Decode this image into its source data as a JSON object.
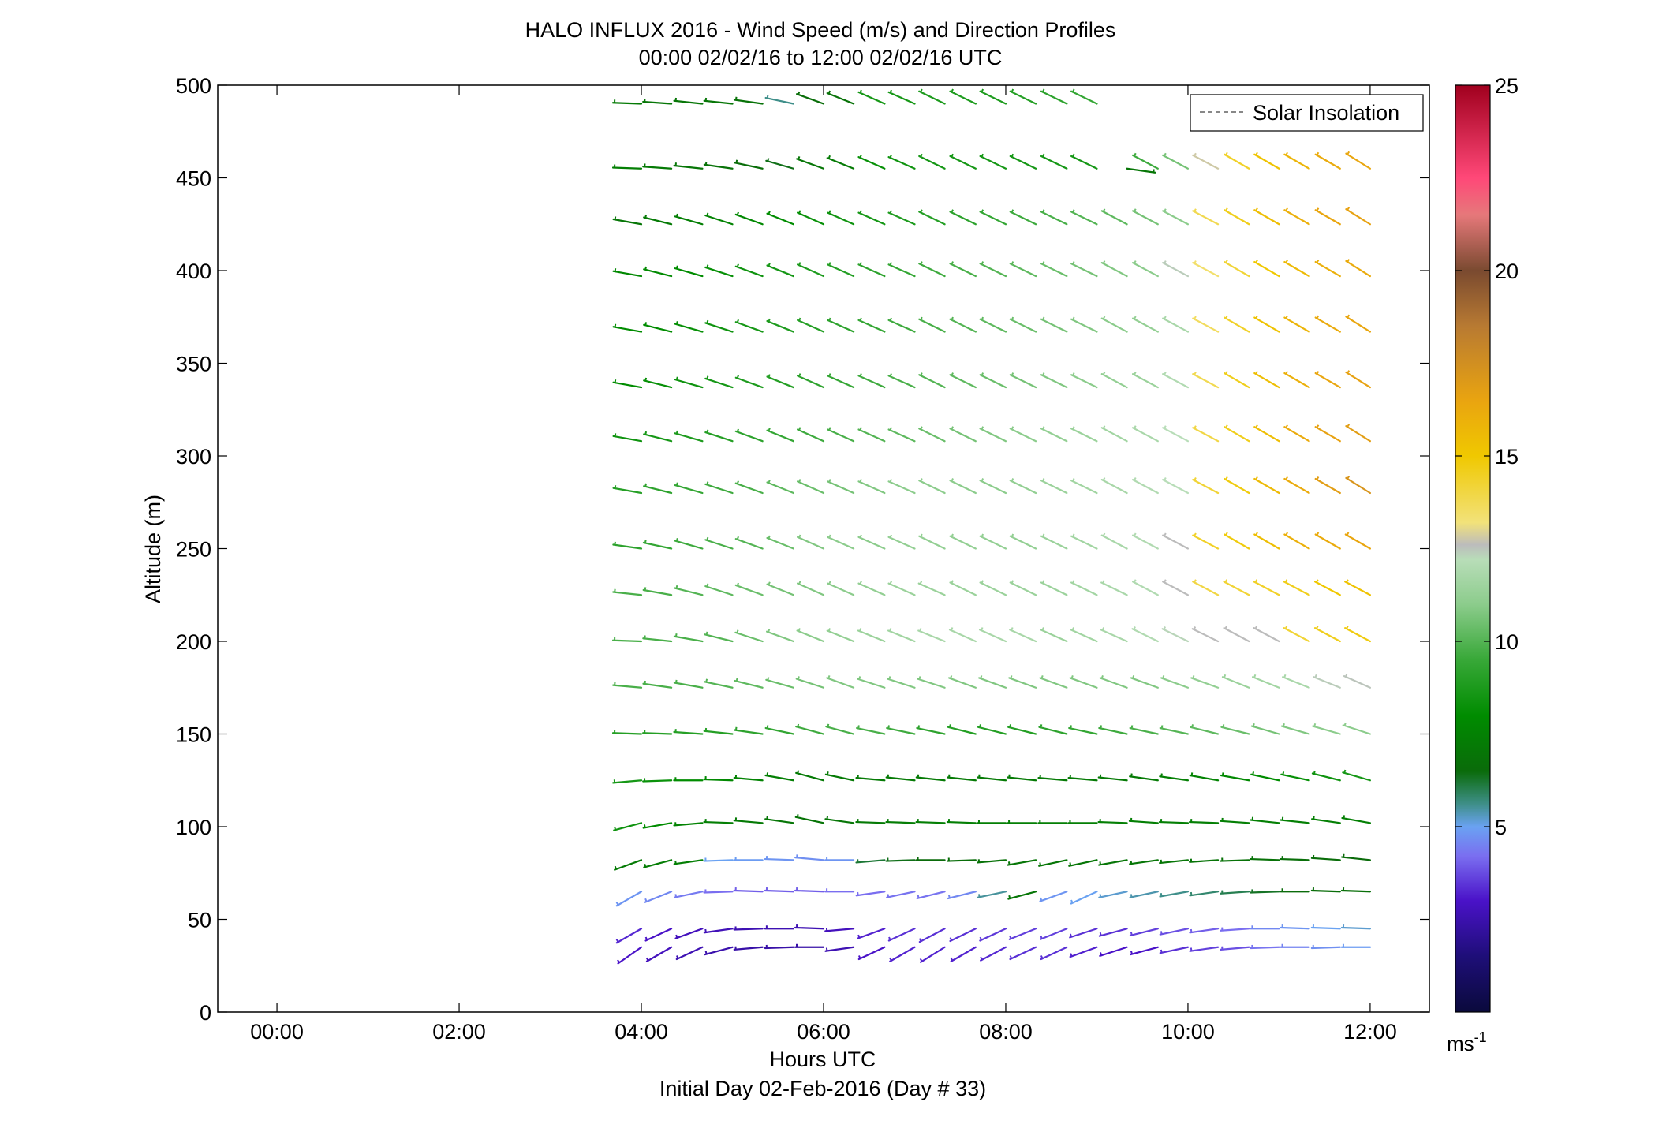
{
  "chart_data": {
    "type": "wind-barb",
    "title": "HALO INFLUX 2016 - Wind Speed (m/s) and Direction Profiles",
    "subtitle": "00:00 02/02/16 to 12:00 02/02/16  UTC",
    "xlabel": "Hours UTC",
    "xlabel2": "Initial Day 02-Feb-2016 (Day # 33)",
    "ylabel": "Altitude (m)",
    "xlim": [
      -0.65,
      12.65
    ],
    "ylim": [
      0,
      500
    ],
    "x_ticks": [
      {
        "value": 0,
        "label": "00:00"
      },
      {
        "value": 2,
        "label": "02:00"
      },
      {
        "value": 4,
        "label": "04:00"
      },
      {
        "value": 6,
        "label": "06:00"
      },
      {
        "value": 8,
        "label": "08:00"
      },
      {
        "value": 10,
        "label": "10:00"
      },
      {
        "value": 12,
        "label": "12:00"
      }
    ],
    "y_ticks": [
      {
        "value": 0,
        "label": "0"
      },
      {
        "value": 50,
        "label": "50"
      },
      {
        "value": 100,
        "label": "100"
      },
      {
        "value": 150,
        "label": "150"
      },
      {
        "value": 200,
        "label": "200"
      },
      {
        "value": 250,
        "label": "250"
      },
      {
        "value": 300,
        "label": "300"
      },
      {
        "value": 350,
        "label": "350"
      },
      {
        "value": 400,
        "label": "400"
      },
      {
        "value": 450,
        "label": "450"
      },
      {
        "value": 500,
        "label": "500"
      }
    ],
    "legend": {
      "label": "Solar Insolation",
      "position": "top-right",
      "line_color": "#888888",
      "line_style": "dashed"
    },
    "colorbar": {
      "min": 0,
      "max": 25,
      "ticks": [
        {
          "value": 5,
          "label": "5"
        },
        {
          "value": 10,
          "label": "10"
        },
        {
          "value": 15,
          "label": "15"
        },
        {
          "value": 20,
          "label": "20"
        },
        {
          "value": 25,
          "label": "25"
        }
      ],
      "unit_label": "ms",
      "unit_exponent": "-1",
      "stops": [
        {
          "v": 0,
          "c": "#0a0a3c"
        },
        {
          "v": 1.5,
          "c": "#1e0e78"
        },
        {
          "v": 3,
          "c": "#4a12c8"
        },
        {
          "v": 4.2,
          "c": "#7a6ef0"
        },
        {
          "v": 5,
          "c": "#6aa2f2"
        },
        {
          "v": 5.6,
          "c": "#3f8f8a"
        },
        {
          "v": 6.5,
          "c": "#0a6b0a"
        },
        {
          "v": 8,
          "c": "#008c00"
        },
        {
          "v": 9.5,
          "c": "#38a838"
        },
        {
          "v": 11,
          "c": "#8ccc8c"
        },
        {
          "v": 12.2,
          "c": "#b8ddb8"
        },
        {
          "v": 12.6,
          "c": "#bcbcbc"
        },
        {
          "v": 13.2,
          "c": "#f2e27a"
        },
        {
          "v": 15,
          "c": "#f0c800"
        },
        {
          "v": 16.5,
          "c": "#e9a410"
        },
        {
          "v": 18.5,
          "c": "#b87a32"
        },
        {
          "v": 20,
          "c": "#7a4a30"
        },
        {
          "v": 21.5,
          "c": "#e6787a"
        },
        {
          "v": 22.5,
          "c": "#ff4878"
        },
        {
          "v": 25,
          "c": "#a0001e"
        }
      ]
    },
    "wind_profiles": {
      "times_hours": [
        4.0,
        4.33,
        4.67,
        5.0,
        5.33,
        5.67,
        6.0,
        6.33,
        6.67,
        7.0,
        7.33,
        7.67,
        8.0,
        8.33,
        8.67,
        9.0,
        9.33,
        9.67,
        10.0,
        10.33,
        10.67,
        11.0,
        11.33,
        11.67,
        12.0
      ],
      "altitudes_m": [
        35,
        45,
        65,
        82,
        102,
        125,
        150,
        175,
        200,
        225,
        250,
        280,
        308,
        337,
        367,
        397,
        425,
        455,
        490
      ],
      "direction_deg": [
        [
          235,
          240,
          245,
          255,
          265,
          268,
          270,
          262,
          245,
          240,
          238,
          240,
          242,
          245,
          245,
          250,
          252,
          255,
          258,
          262,
          265,
          268,
          270,
          268,
          270
        ],
        [
          240,
          245,
          250,
          262,
          268,
          270,
          272,
          265,
          250,
          245,
          242,
          244,
          245,
          248,
          248,
          252,
          255,
          256,
          258,
          262,
          266,
          270,
          272,
          272,
          272
        ],
        [
          240,
          248,
          258,
          268,
          272,
          272,
          272,
          270,
          262,
          258,
          256,
          256,
          258,
          255,
          250,
          245,
          258,
          258,
          260,
          262,
          266,
          268,
          270,
          272,
          272
        ],
        [
          250,
          255,
          262,
          268,
          270,
          272,
          275,
          270,
          265,
          268,
          270,
          268,
          265,
          260,
          258,
          258,
          260,
          262,
          264,
          266,
          268,
          272,
          272,
          274,
          276
        ],
        [
          255,
          260,
          265,
          272,
          275,
          278,
          282,
          278,
          272,
          272,
          272,
          272,
          270,
          270,
          270,
          270,
          272,
          274,
          272,
          272,
          274,
          276,
          276,
          278,
          280
        ],
        [
          265,
          268,
          270,
          272,
          275,
          280,
          285,
          282,
          275,
          276,
          276,
          276,
          276,
          276,
          275,
          275,
          276,
          278,
          278,
          280,
          280,
          282,
          282,
          284,
          286
        ],
        [
          272,
          272,
          274,
          276,
          278,
          282,
          285,
          285,
          282,
          282,
          282,
          284,
          284,
          284,
          284,
          282,
          282,
          282,
          282,
          284,
          284,
          286,
          286,
          286,
          288
        ],
        [
          275,
          278,
          280,
          282,
          284,
          286,
          288,
          290,
          288,
          288,
          288,
          290,
          290,
          290,
          290,
          290,
          290,
          290,
          290,
          290,
          292,
          292,
          292,
          292,
          294
        ],
        [
          272,
          276,
          280,
          284,
          288,
          290,
          292,
          292,
          292,
          292,
          292,
          294,
          294,
          294,
          294,
          294,
          294,
          296,
          296,
          296,
          298,
          298,
          298,
          298,
          298
        ],
        [
          276,
          280,
          284,
          288,
          290,
          292,
          294,
          294,
          294,
          294,
          294,
          296,
          296,
          296,
          296,
          296,
          296,
          298,
          298,
          298,
          298,
          298,
          298,
          298,
          298
        ],
        [
          278,
          282,
          286,
          288,
          290,
          292,
          294,
          294,
          294,
          294,
          296,
          296,
          296,
          296,
          296,
          296,
          298,
          298,
          298,
          298,
          300,
          300,
          300,
          300,
          300
        ],
        [
          280,
          284,
          286,
          288,
          290,
          292,
          294,
          294,
          294,
          294,
          296,
          296,
          296,
          296,
          296,
          296,
          298,
          298,
          298,
          298,
          300,
          300,
          300,
          300,
          302
        ],
        [
          280,
          284,
          286,
          288,
          290,
          292,
          294,
          294,
          294,
          294,
          296,
          296,
          296,
          296,
          296,
          296,
          298,
          298,
          298,
          298,
          300,
          300,
          300,
          300,
          302
        ],
        [
          280,
          284,
          286,
          288,
          290,
          292,
          294,
          294,
          294,
          294,
          296,
          296,
          296,
          296,
          296,
          296,
          298,
          298,
          298,
          298,
          300,
          300,
          300,
          300,
          302
        ],
        [
          280,
          284,
          286,
          288,
          290,
          292,
          294,
          294,
          294,
          294,
          296,
          296,
          296,
          296,
          296,
          296,
          298,
          298,
          298,
          298,
          300,
          300,
          300,
          300,
          302
        ],
        [
          280,
          284,
          286,
          288,
          290,
          292,
          294,
          294,
          294,
          294,
          296,
          296,
          296,
          296,
          296,
          296,
          298,
          298,
          298,
          298,
          300,
          300,
          300,
          300,
          302
        ],
        [
          280,
          284,
          286,
          288,
          290,
          292,
          294,
          294,
          294,
          294,
          296,
          296,
          296,
          296,
          296,
          296,
          298,
          298,
          298,
          298,
          300,
          300,
          300,
          300,
          302
        ],
        [
          272,
          274,
          276,
          278,
          282,
          286,
          290,
          292,
          294,
          294,
          296,
          296,
          296,
          296,
          296,
          296,
          98,
          298,
          298,
          298,
          300,
          300,
          300,
          300,
          302
        ],
        [
          272,
          274,
          276,
          276,
          278,
          282,
          290,
          292,
          294,
          294,
          296,
          296,
          296,
          296,
          296,
          296,
          null,
          null,
          null,
          null,
          null,
          null,
          null,
          null,
          null
        ]
      ],
      "speed_ms": [
        [
          3.0,
          2.8,
          2.6,
          2.5,
          2.4,
          2.4,
          2.4,
          2.6,
          3.0,
          3.2,
          3.2,
          3.2,
          3.3,
          3.4,
          3.4,
          3.2,
          3.0,
          3.0,
          3.4,
          3.6,
          3.8,
          4.3,
          4.5,
          4.7,
          4.9
        ],
        [
          3.3,
          3.0,
          2.8,
          2.7,
          2.6,
          2.6,
          2.6,
          2.8,
          3.2,
          3.4,
          3.4,
          3.4,
          3.5,
          3.6,
          3.6,
          3.4,
          3.4,
          3.6,
          3.8,
          4.0,
          4.2,
          4.6,
          4.8,
          5.0,
          5.2
        ],
        [
          4.8,
          4.6,
          4.4,
          4.2,
          4.0,
          4.0,
          4.0,
          4.2,
          4.2,
          4.3,
          4.3,
          4.6,
          5.5,
          7.0,
          4.8,
          5.0,
          5.2,
          5.4,
          5.6,
          5.8,
          6.0,
          6.3,
          6.5,
          6.6,
          6.7
        ],
        [
          7.2,
          7.3,
          7.4,
          5.0,
          4.9,
          4.8,
          4.7,
          4.8,
          6.2,
          6.4,
          6.5,
          6.6,
          6.8,
          7.0,
          7.0,
          7.0,
          7.0,
          7.0,
          7.0,
          6.9,
          6.8,
          6.8,
          6.7,
          6.6,
          6.5
        ],
        [
          8.4,
          8.0,
          7.6,
          7.4,
          7.2,
          7.0,
          6.9,
          7.0,
          7.2,
          7.3,
          7.4,
          7.4,
          7.4,
          7.4,
          7.4,
          7.4,
          7.4,
          7.4,
          7.4,
          7.4,
          7.4,
          7.4,
          7.4,
          7.4,
          7.4
        ],
        [
          8.6,
          8.3,
          8.0,
          7.8,
          7.6,
          7.4,
          7.2,
          7.2,
          7.2,
          7.2,
          7.2,
          7.2,
          7.2,
          7.2,
          7.2,
          7.2,
          7.2,
          7.2,
          7.4,
          7.6,
          7.8,
          8.0,
          8.2,
          8.4,
          8.6
        ],
        [
          9.0,
          9.0,
          9.0,
          9.0,
          9.2,
          9.4,
          9.6,
          9.8,
          9.8,
          9.6,
          9.2,
          9.0,
          9.0,
          9.0,
          9.2,
          9.4,
          9.6,
          9.8,
          10.0,
          10.2,
          10.4,
          10.6,
          10.8,
          11.0,
          11.0
        ],
        [
          9.8,
          9.8,
          9.8,
          10.0,
          10.2,
          10.4,
          10.6,
          10.8,
          10.8,
          10.8,
          10.8,
          10.8,
          10.8,
          10.8,
          10.8,
          10.8,
          10.8,
          10.8,
          11.0,
          11.2,
          11.4,
          11.6,
          11.8,
          12.4,
          12.5
        ],
        [
          9.8,
          9.8,
          9.8,
          10.0,
          10.4,
          10.8,
          11.0,
          11.2,
          11.4,
          11.6,
          11.8,
          11.8,
          11.8,
          11.8,
          11.4,
          11.6,
          11.8,
          12.0,
          12.3,
          12.6,
          12.6,
          12.6,
          14.2,
          14.6,
          14.8
        ],
        [
          9.8,
          9.8,
          10.0,
          10.2,
          10.4,
          10.6,
          10.8,
          11.0,
          11.2,
          11.4,
          11.4,
          11.4,
          11.4,
          11.4,
          11.4,
          11.6,
          11.8,
          12.0,
          12.6,
          14.0,
          14.2,
          14.4,
          14.6,
          15.0,
          15.2
        ],
        [
          9.2,
          9.4,
          9.6,
          9.8,
          10.0,
          10.4,
          10.8,
          11.0,
          11.0,
          11.2,
          11.2,
          11.2,
          11.2,
          11.2,
          11.4,
          11.6,
          11.8,
          12.0,
          12.6,
          14.4,
          14.8,
          15.4,
          16.0,
          16.2,
          16.4
        ],
        [
          9.0,
          9.2,
          9.4,
          9.6,
          9.8,
          10.2,
          10.4,
          10.6,
          10.8,
          11.0,
          11.0,
          11.0,
          11.0,
          11.2,
          11.4,
          11.6,
          11.8,
          12.0,
          12.2,
          14.2,
          14.8,
          15.6,
          16.2,
          16.8,
          17.2
        ],
        [
          8.4,
          8.6,
          8.8,
          9.0,
          9.2,
          9.4,
          9.6,
          9.8,
          10.0,
          10.2,
          10.4,
          10.6,
          10.8,
          11.0,
          11.2,
          11.4,
          11.6,
          11.8,
          12.2,
          14.0,
          14.6,
          15.4,
          16.2,
          16.6,
          16.8
        ],
        [
          8.0,
          8.2,
          8.4,
          8.6,
          8.8,
          9.0,
          9.2,
          9.4,
          9.6,
          9.8,
          10.0,
          10.2,
          10.4,
          10.6,
          10.8,
          11.0,
          11.2,
          11.4,
          12.0,
          13.8,
          14.6,
          15.4,
          16.0,
          16.4,
          16.6
        ],
        [
          8.0,
          8.0,
          8.2,
          8.4,
          8.6,
          8.8,
          9.0,
          9.2,
          9.4,
          9.6,
          9.8,
          10.0,
          10.2,
          10.4,
          10.6,
          10.8,
          11.0,
          11.2,
          11.8,
          13.6,
          14.4,
          15.2,
          15.8,
          16.2,
          16.4
        ],
        [
          7.8,
          7.9,
          8.0,
          8.2,
          8.4,
          8.6,
          8.8,
          9.0,
          9.2,
          9.4,
          9.6,
          9.8,
          10.0,
          10.2,
          10.4,
          10.6,
          10.8,
          11.0,
          12.4,
          13.4,
          14.2,
          15.0,
          15.6,
          16.0,
          16.2
        ],
        [
          7.0,
          7.2,
          7.4,
          7.6,
          7.8,
          8.0,
          8.2,
          8.4,
          8.6,
          8.8,
          9.0,
          9.2,
          9.4,
          9.6,
          9.8,
          10.0,
          10.2,
          10.6,
          11.0,
          13.8,
          14.6,
          15.4,
          16.0,
          16.4,
          16.6
        ],
        [
          7.4,
          7.2,
          7.0,
          6.8,
          6.6,
          6.4,
          7.0,
          7.2,
          8.2,
          8.4,
          8.6,
          8.6,
          8.6,
          8.6,
          8.6,
          8.6,
          7.0,
          9.6,
          10.6,
          12.8,
          14.4,
          15.2,
          15.8,
          16.2,
          16.4
        ],
        [
          7.2,
          7.0,
          7.0,
          7.0,
          6.8,
          5.6,
          6.6,
          6.8,
          8.6,
          8.6,
          8.8,
          8.8,
          8.8,
          9.0,
          9.2,
          9.4,
          null,
          null,
          null,
          null,
          null,
          null,
          null,
          null,
          null
        ]
      ]
    }
  }
}
